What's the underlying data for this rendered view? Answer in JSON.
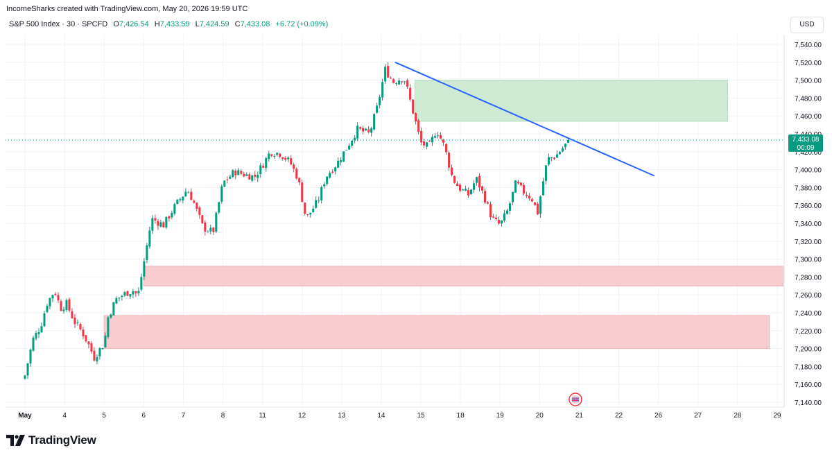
{
  "credit": "IncomeSharks created with TradingView.com, May 20, 2026 19:59 UTC",
  "legend": {
    "symbol": "S&P 500 Index · 30 · SPCFD",
    "open_label": "O",
    "open": "7,426.54",
    "high_label": "H",
    "high": "7,433.59",
    "low_label": "L",
    "low": "7,424.59",
    "close_label": "C",
    "close": "7,433.08",
    "change": "+6.72 (+0.09%)"
  },
  "currency": "USD",
  "brand": "TradingView",
  "colors": {
    "up": "#089981",
    "down": "#f23645",
    "trendline": "#2962ff",
    "supply_zone": "#cfead3",
    "demand_zone": "#f9cdd0"
  },
  "chart_data": {
    "type": "candlestick",
    "symbol": "S&P 500 Index",
    "interval": "30",
    "y_axis": {
      "ylim": [
        7130,
        7555
      ],
      "ticks": [
        "7,140.00",
        "7,160.00",
        "7,180.00",
        "7,200.00",
        "7,220.00",
        "7,240.00",
        "7,260.00",
        "7,280.00",
        "7,300.00",
        "7,320.00",
        "7,340.00",
        "7,360.00",
        "7,380.00",
        "7,400.00",
        "7,420.00",
        "7,440.00",
        "7,460.00",
        "7,480.00",
        "7,500.00",
        "7,520.00",
        "7,540.00"
      ],
      "tick_values": [
        7140,
        7160,
        7180,
        7200,
        7220,
        7240,
        7260,
        7280,
        7300,
        7320,
        7340,
        7360,
        7380,
        7400,
        7420,
        7440,
        7460,
        7480,
        7500,
        7520,
        7540
      ]
    },
    "x_axis": {
      "labels": [
        "May",
        "4",
        "5",
        "6",
        "7",
        "8",
        "11",
        "12",
        "13",
        "14",
        "15",
        "18",
        "19",
        "20",
        "21",
        "22",
        "26",
        "27",
        "28",
        "29"
      ],
      "label_index": [
        0,
        1,
        2,
        3,
        4,
        5,
        6,
        7,
        8,
        9,
        10,
        11,
        12,
        13,
        14,
        15,
        16,
        17,
        18,
        19
      ]
    },
    "last_price": {
      "value": 7433.08,
      "label": "7,433.08",
      "countdown": "00:09"
    },
    "candle_path": [
      [
        0.0,
        7170
      ],
      [
        0.2,
        7210
      ],
      [
        0.4,
        7225
      ],
      [
        0.55,
        7250
      ],
      [
        0.75,
        7265
      ],
      [
        0.9,
        7245
      ],
      [
        1.05,
        7250
      ],
      [
        1.25,
        7230
      ],
      [
        1.45,
        7218
      ],
      [
        1.6,
        7205
      ],
      [
        1.75,
        7190
      ],
      [
        1.95,
        7203
      ],
      [
        2.0,
        7205
      ],
      [
        2.1,
        7235
      ],
      [
        2.3,
        7255
      ],
      [
        2.55,
        7262
      ],
      [
        2.75,
        7265
      ],
      [
        2.85,
        7258
      ],
      [
        3.0,
        7295
      ],
      [
        3.2,
        7345
      ],
      [
        3.5,
        7338
      ],
      [
        3.8,
        7360
      ],
      [
        4.1,
        7378
      ],
      [
        4.25,
        7365
      ],
      [
        4.5,
        7335
      ],
      [
        4.75,
        7330
      ],
      [
        5.0,
        7385
      ],
      [
        5.3,
        7398
      ],
      [
        5.5,
        7395
      ],
      [
        5.8,
        7392
      ],
      [
        6.0,
        7405
      ],
      [
        6.2,
        7420
      ],
      [
        6.45,
        7418
      ],
      [
        6.7,
        7408
      ],
      [
        6.9,
        7390
      ],
      [
        7.1,
        7345
      ],
      [
        7.4,
        7365
      ],
      [
        7.6,
        7392
      ],
      [
        7.9,
        7408
      ],
      [
        8.2,
        7430
      ],
      [
        8.4,
        7445
      ],
      [
        8.7,
        7440
      ],
      [
        8.9,
        7470
      ],
      [
        9.1,
        7512
      ],
      [
        9.3,
        7498
      ],
      [
        9.5,
        7502
      ],
      [
        9.6,
        7500
      ],
      [
        10.0,
        7430
      ],
      [
        10.2,
        7425
      ],
      [
        10.4,
        7445
      ],
      [
        10.6,
        7425
      ],
      [
        10.8,
        7390
      ],
      [
        11.0,
        7378
      ],
      [
        11.2,
        7372
      ],
      [
        11.4,
        7390
      ],
      [
        11.6,
        7370
      ],
      [
        11.8,
        7345
      ],
      [
        12.0,
        7338
      ],
      [
        12.2,
        7355
      ],
      [
        12.4,
        7385
      ],
      [
        12.6,
        7375
      ],
      [
        12.8,
        7368
      ],
      [
        12.95,
        7352
      ],
      [
        13.05,
        7378
      ],
      [
        13.2,
        7412
      ],
      [
        13.4,
        7415
      ],
      [
        13.6,
        7425
      ],
      [
        13.75,
        7433
      ]
    ],
    "trendline": {
      "from": [
        9.35,
        7520
      ],
      "to": [
        15.9,
        7393
      ]
    },
    "zones": [
      {
        "type": "supply",
        "x": [
          9.85,
          17.75
        ],
        "y": [
          7454,
          7500
        ]
      },
      {
        "type": "demand",
        "x": [
          3.0,
          19.15
        ],
        "y": [
          7270,
          7292
        ]
      },
      {
        "type": "demand",
        "x": [
          2.0,
          18.8
        ],
        "y": [
          7200,
          7237
        ]
      }
    ],
    "grid": true,
    "legend_position": "top-left"
  }
}
